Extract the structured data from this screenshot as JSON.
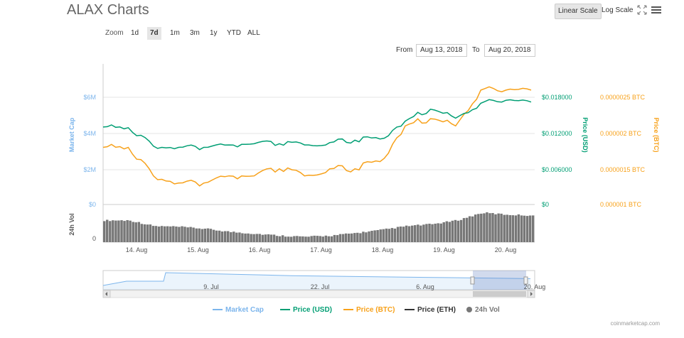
{
  "title": "ALAX Charts",
  "scale": {
    "linear": "Linear Scale",
    "log": "Log Scale"
  },
  "zoom": {
    "label": "Zoom",
    "buttons": [
      "1d",
      "7d",
      "1m",
      "3m",
      "1y",
      "YTD",
      "ALL"
    ],
    "active": "7d"
  },
  "range": {
    "from_label": "From",
    "from_value": "Aug 13, 2018",
    "to_label": "To",
    "to_value": "Aug 20, 2018"
  },
  "axes": {
    "market_cap_title": "Market Cap",
    "market_cap_ticks": [
      "$6M",
      "$4M",
      "$2M",
      "$0"
    ],
    "usd_title": "Price (USD)",
    "usd_ticks": [
      "$0.018000",
      "$0.012000",
      "$0.006000",
      "$0"
    ],
    "btc_title": "Price (BTC)",
    "btc_ticks": [
      "0.0000025 BTC",
      "0.000002 BTC",
      "0.0000015 BTC",
      "0.000001 BTC"
    ],
    "vol_title": "24h Vol",
    "vol_ticks": [
      "0"
    ],
    "x_ticks": [
      "14. Aug",
      "15. Aug",
      "16. Aug",
      "17. Aug",
      "18. Aug",
      "19. Aug",
      "20. Aug"
    ],
    "nav_ticks": [
      "9. Jul",
      "22. Jul",
      "6. Aug",
      "20. Aug"
    ]
  },
  "legend": [
    {
      "name": "Market Cap",
      "color": "#7cb5ec",
      "kind": "line"
    },
    {
      "name": "Price (USD)",
      "color": "#009e73",
      "kind": "line"
    },
    {
      "name": "Price (BTC)",
      "color": "#f7a11a",
      "kind": "line"
    },
    {
      "name": "Price (ETH)",
      "color": "#333333",
      "kind": "line"
    },
    {
      "name": "24h Vol",
      "color": "#777777",
      "kind": "dot"
    }
  ],
  "credit": "coinmarketcap.com",
  "colors": {
    "usd": "#009e73",
    "btc": "#f7a11a",
    "mcap": "#7cb5ec",
    "vol": "#777777",
    "grid": "#e6e6e6"
  },
  "chart_data": {
    "type": "line",
    "x": [
      "13. Aug",
      "13.5",
      "14. Aug",
      "14.5",
      "15. Aug",
      "15.5",
      "16. Aug",
      "16.5",
      "17. Aug",
      "17.5",
      "18. Aug",
      "18.5",
      "19. Aug",
      "19.25",
      "19.5",
      "19.75",
      "20. Aug",
      "20.3"
    ],
    "series": [
      {
        "name": "Price (USD)",
        "axis": "usd",
        "values": [
          0.013,
          0.0129,
          0.0098,
          0.0096,
          0.0096,
          0.01,
          0.0102,
          0.0102,
          0.01,
          0.0104,
          0.0108,
          0.011,
          0.014,
          0.016,
          0.0145,
          0.017,
          0.0175,
          0.0172
        ]
      },
      {
        "name": "Price (BTC)",
        "axis": "btc",
        "values": [
          1.8e-06,
          1.8e-06,
          1.4e-06,
          1.3e-06,
          1.3e-06,
          1.4e-06,
          1.4e-06,
          1.5e-06,
          1.4e-06,
          1.5e-06,
          1.5e-06,
          1.6e-06,
          2.1e-06,
          2.2e-06,
          2.1e-06,
          2.6e-06,
          2.6e-06,
          2.6e-06
        ]
      },
      {
        "name": "24h Vol",
        "axis": "vol",
        "values": [
          55,
          55,
          40,
          38,
          33,
          25,
          20,
          15,
          12,
          15,
          22,
          30,
          40,
          45,
          55,
          75,
          70,
          68
        ]
      }
    ],
    "navigator": {
      "name": "Market Cap",
      "x": [
        "1. Jul",
        "9. Jul",
        "22. Jul",
        "6. Aug",
        "20. Aug"
      ],
      "values": [
        1.0,
        4.0,
        3.3,
        2.9,
        2.6
      ]
    },
    "usd_range": [
      0,
      0.024
    ],
    "btc_range": [
      1e-06,
      3e-06
    ],
    "mcap_range": [
      0,
      8
    ],
    "grid": true
  }
}
